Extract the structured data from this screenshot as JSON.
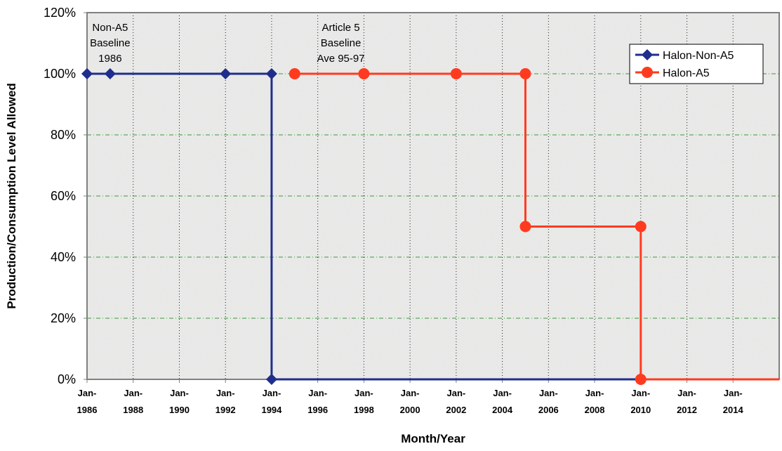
{
  "chart_data": {
    "type": "line",
    "xlabel": "Month/Year",
    "ylabel": "Production/Consumption Level Allowed",
    "xlim": [
      1986,
      2016
    ],
    "ylim": [
      0,
      120
    ],
    "grid": true,
    "legend_position": "top-right",
    "y_ticks": [
      {
        "value": 0,
        "label": "0%"
      },
      {
        "value": 20,
        "label": "20%"
      },
      {
        "value": 40,
        "label": "40%"
      },
      {
        "value": 60,
        "label": "60%"
      },
      {
        "value": 80,
        "label": "80%"
      },
      {
        "value": 100,
        "label": "100%"
      },
      {
        "value": 120,
        "label": "120%"
      }
    ],
    "x_ticks": [
      {
        "value": 1986,
        "line1": "Jan-",
        "line2": "1986"
      },
      {
        "value": 1988,
        "line1": "Jan-",
        "line2": "1988"
      },
      {
        "value": 1990,
        "line1": "Jan-",
        "line2": "1990"
      },
      {
        "value": 1992,
        "line1": "Jan-",
        "line2": "1992"
      },
      {
        "value": 1994,
        "line1": "Jan-",
        "line2": "1994"
      },
      {
        "value": 1996,
        "line1": "Jan-",
        "line2": "1996"
      },
      {
        "value": 1998,
        "line1": "Jan-",
        "line2": "1998"
      },
      {
        "value": 2000,
        "line1": "Jan-",
        "line2": "2000"
      },
      {
        "value": 2002,
        "line1": "Jan-",
        "line2": "2002"
      },
      {
        "value": 2004,
        "line1": "Jan-",
        "line2": "2004"
      },
      {
        "value": 2006,
        "line1": "Jan-",
        "line2": "2006"
      },
      {
        "value": 2008,
        "line1": "Jan-",
        "line2": "2008"
      },
      {
        "value": 2010,
        "line1": "Jan-",
        "line2": "2010"
      },
      {
        "value": 2012,
        "line1": "Jan-",
        "line2": "2012"
      },
      {
        "value": 2014,
        "line1": "Jan-",
        "line2": "2014"
      }
    ],
    "series": [
      {
        "name": "Halon-Non-A5",
        "color": "#1f2e8c",
        "marker": "diamond",
        "points": [
          {
            "x": 1986,
            "y": 100
          },
          {
            "x": 1987,
            "y": 100
          },
          {
            "x": 1992,
            "y": 100
          },
          {
            "x": 1994,
            "y": 100
          },
          {
            "x": 1994,
            "y": 0
          },
          {
            "x": 2016,
            "y": 0
          }
        ]
      },
      {
        "name": "Halon-A5",
        "color": "#ff3b1f",
        "marker": "circle",
        "points": [
          {
            "x": 1995,
            "y": 100
          },
          {
            "x": 1998,
            "y": 100
          },
          {
            "x": 2002,
            "y": 100
          },
          {
            "x": 2005,
            "y": 100
          },
          {
            "x": 2005,
            "y": 50
          },
          {
            "x": 2010,
            "y": 50
          },
          {
            "x": 2010,
            "y": 0
          },
          {
            "x": 2016,
            "y": 0
          }
        ]
      }
    ],
    "annotations": [
      {
        "x": 1987,
        "y": 110,
        "lines": [
          "Non-A5",
          "Baseline",
          "1986"
        ]
      },
      {
        "x": 1997,
        "y": 110,
        "lines": [
          "Article 5",
          "Baseline",
          "Ave 95-97"
        ]
      }
    ]
  }
}
